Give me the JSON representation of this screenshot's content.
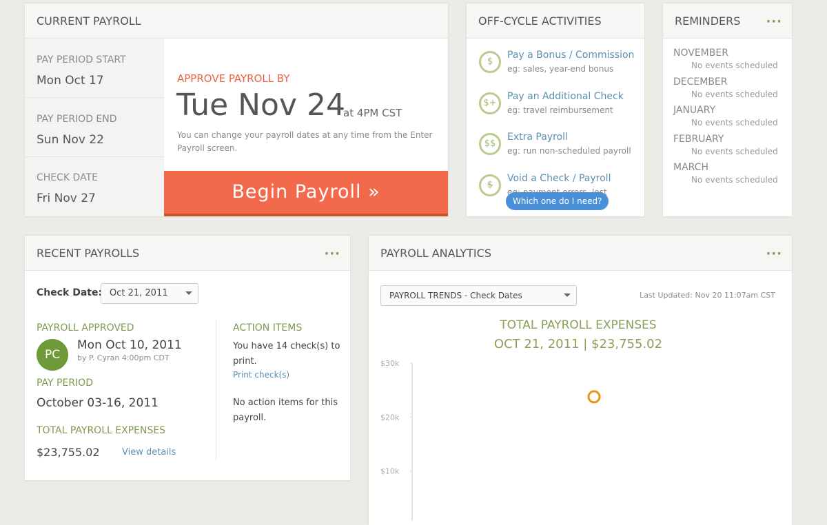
{
  "current_payroll": {
    "title": "CURRENT PAYROLL",
    "fields": [
      {
        "label": "PAY PERIOD START",
        "value": "Mon Oct 17"
      },
      {
        "label": "PAY PERIOD END",
        "value": "Sun Nov 22"
      },
      {
        "label": "CHECK DATE",
        "value": "Fri Nov 27"
      }
    ],
    "approve_label": "APPROVE PAYROLL BY",
    "approve_date": "Tue Nov 24",
    "approve_time": "at 4PM CST",
    "note": "You can change your payroll dates at any time from the Enter Payroll screen.",
    "button": "Begin Payroll »"
  },
  "off_cycle": {
    "title": "OFF-CYCLE ACTIVITIES",
    "items": [
      {
        "icon": "$",
        "label": "Pay a Bonus / Commission",
        "hint": "eg: sales, year-end bonus"
      },
      {
        "icon": "$+",
        "label": "Pay an Additional Check",
        "hint": "eg: travel reimbursement"
      },
      {
        "icon": "$$",
        "label": "Extra Payroll",
        "hint": "eg: run non-scheduled payroll"
      },
      {
        "icon": "$",
        "label": "Void a Check / Payroll",
        "hint": "eg: payment errors, lost"
      }
    ],
    "help": "Which one do I need?"
  },
  "reminders": {
    "title": "REMINDERS",
    "months": [
      {
        "month": "NOVEMBER",
        "note": "No events scheduled"
      },
      {
        "month": "DECEMBER",
        "note": "No events scheduled"
      },
      {
        "month": "JANUARY",
        "note": "No events scheduled"
      },
      {
        "month": "FEBRUARY",
        "note": "No events scheduled"
      },
      {
        "month": "MARCH",
        "note": "No events scheduled"
      }
    ]
  },
  "recent_payrolls": {
    "title": "RECENT PAYROLLS",
    "check_date_label": "Check Date:",
    "check_date": "Oct 21, 2011",
    "approved_label": "PAYROLL APPROVED",
    "avatar": "PC",
    "approved_date": "Mon Oct 10, 2011",
    "approved_by": "by P. Cyran 4:00pm CDT",
    "period_label": "PAY PERIOD",
    "period": "October 03-16, 2011",
    "total_label": "TOTAL PAYROLL EXPENSES",
    "total": "$23,755.02",
    "view_details": "View details",
    "action_title": "ACTION ITEMS",
    "action_text": "You have 14 check(s) to print.",
    "print_link": "Print check(s)",
    "no_action": "No action items for this payroll."
  },
  "analytics": {
    "title": "PAYROLL ANALYTICS",
    "dropdown": "PAYROLL TRENDS - Check Dates",
    "last_updated": "Last Updated: Nov 20 11:07am CST",
    "chart": {
      "type": "scatter",
      "title": "TOTAL PAYROLL EXPENSES",
      "subtitle": "OCT 21, 2011 | $23,755.02",
      "values": [
        23755.02
      ],
      "color": "#e8941a",
      "ylim": [
        0,
        30000
      ],
      "yticks": [
        {
          "value": 10000,
          "label": "$10k"
        },
        {
          "value": 20000,
          "label": "$20k"
        },
        {
          "value": 30000,
          "label": "$30k"
        }
      ]
    }
  }
}
